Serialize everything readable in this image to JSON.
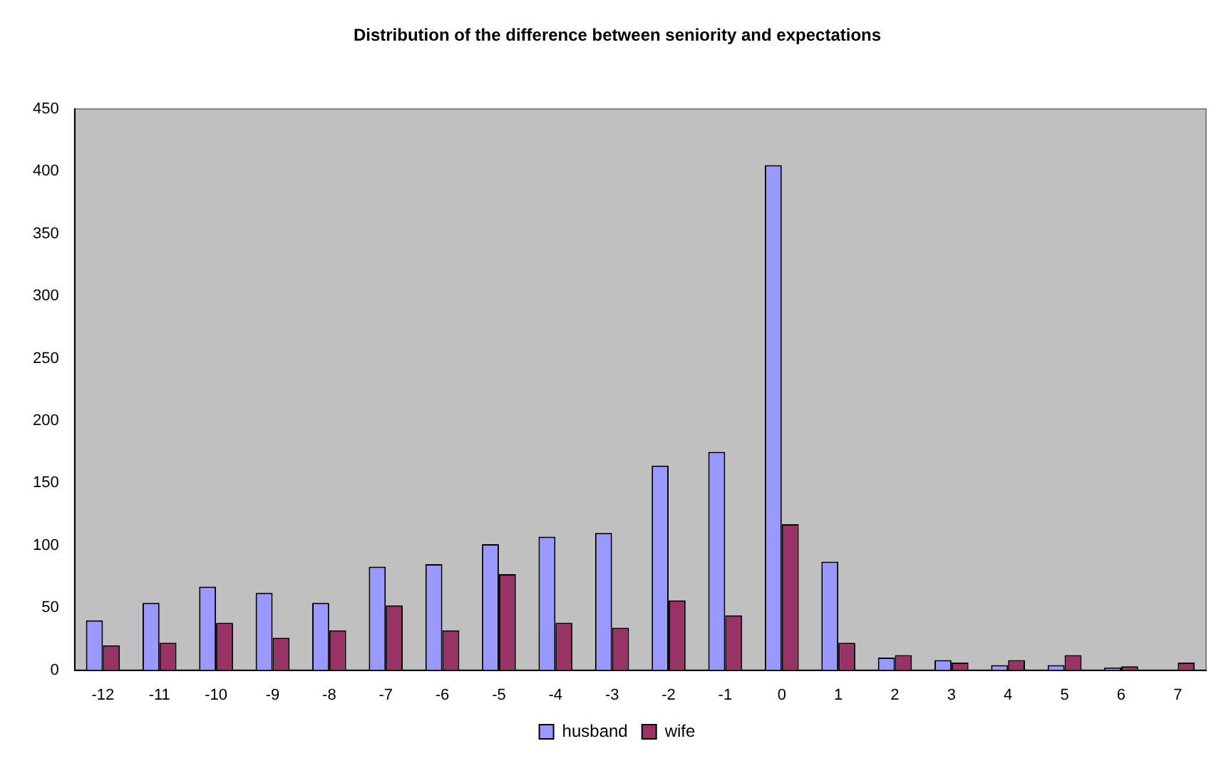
{
  "chart_data": {
    "type": "bar",
    "title": "Distribution of the difference between seniority and expectations",
    "categories": [
      "-12",
      "-11",
      "-10",
      "-9",
      "-8",
      "-7",
      "-6",
      "-5",
      "-4",
      "-3",
      "-2",
      "-1",
      "0",
      "1",
      "2",
      "3",
      "4",
      "5",
      "6",
      "7"
    ],
    "series": [
      {
        "name": "husband",
        "color": "#9999ff",
        "values": [
          40,
          54,
          67,
          62,
          54,
          83,
          85,
          101,
          107,
          110,
          164,
          175,
          405,
          87,
          10,
          8,
          4,
          4,
          2,
          0
        ]
      },
      {
        "name": "wife",
        "color": "#993366",
        "values": [
          20,
          22,
          38,
          26,
          32,
          52,
          32,
          77,
          38,
          34,
          56,
          44,
          117,
          22,
          12,
          6,
          8,
          12,
          3,
          6
        ]
      }
    ],
    "ylim": [
      0,
      450
    ],
    "yticks": [
      0,
      50,
      100,
      150,
      200,
      250,
      300,
      350,
      400,
      450
    ],
    "grid": false,
    "legend": "bottom"
  }
}
